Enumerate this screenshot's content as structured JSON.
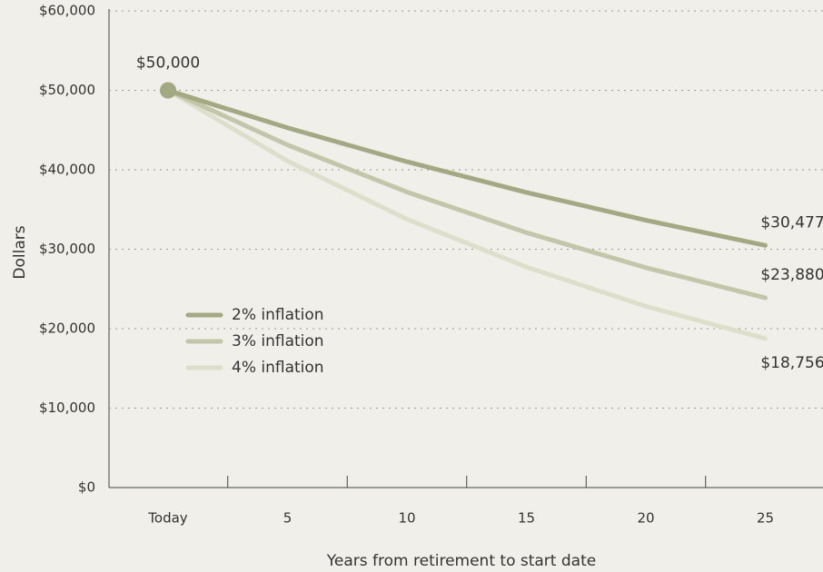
{
  "chart_data": {
    "type": "line",
    "x_label": "Years from retirement to start date",
    "y_label": "Dollars",
    "categories": [
      "Today",
      "5",
      "10",
      "15",
      "20",
      "25"
    ],
    "series": [
      {
        "name": "2% inflation",
        "color": "#a3a982",
        "values": [
          50000,
          45287,
          41017,
          37150,
          33649,
          30477
        ],
        "value_labels": [
          "$50,000",
          null,
          null,
          null,
          null,
          "$30,477"
        ]
      },
      {
        "name": "3% inflation",
        "color": "#c3c6a9",
        "values": [
          50000,
          43130,
          37205,
          32093,
          27684,
          23880
        ],
        "value_labels": [
          null,
          null,
          null,
          null,
          null,
          "$23,880"
        ]
      },
      {
        "name": "4% inflation",
        "color": "#dddfca",
        "values": [
          50000,
          41096,
          33778,
          27763,
          22819,
          18756
        ],
        "value_labels": [
          null,
          null,
          null,
          null,
          null,
          "$18,756"
        ]
      }
    ],
    "ylim": [
      0,
      60000
    ],
    "yticks": [
      {
        "value": 0,
        "label": "$0"
      },
      {
        "value": 10000,
        "label": "$10,000"
      },
      {
        "value": 20000,
        "label": "$20,000"
      },
      {
        "value": 30000,
        "label": "$30,000"
      },
      {
        "value": 40000,
        "label": "$40,000"
      },
      {
        "value": 50000,
        "label": "$50,000"
      },
      {
        "value": 60000,
        "label": "$60,000"
      }
    ],
    "grid": true,
    "legend": "left"
  }
}
